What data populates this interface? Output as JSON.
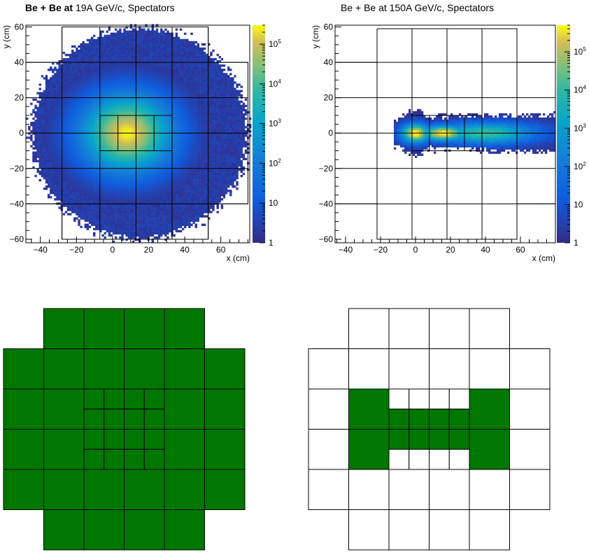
{
  "chart_data": [
    {
      "type": "heatmap",
      "title": {
        "bold": "Be + Be at",
        "rest": " 19A GeV/c, Spectators"
      },
      "xlabel": "x (cm)",
      "ylabel": "y (cm)",
      "xlim": [
        -48,
        76
      ],
      "ylim": [
        -62,
        61
      ],
      "xticks": [
        -40,
        -20,
        0,
        20,
        40,
        60
      ],
      "yticks": [
        -60,
        -40,
        -20,
        0,
        20,
        40,
        60
      ],
      "z_scale": "log",
      "z_range": [
        1,
        300000
      ],
      "colorbar_ticks": [
        {
          "value": 1,
          "base": "1",
          "exp": ""
        },
        {
          "value": 10,
          "base": "10",
          "exp": ""
        },
        {
          "value": 100,
          "base": "10",
          "exp": "2"
        },
        {
          "value": 1000,
          "base": "10",
          "exp": "3"
        },
        {
          "value": 10000,
          "base": "10",
          "exp": "4"
        },
        {
          "value": 100000,
          "base": "10",
          "exp": "5"
        }
      ],
      "distribution": {
        "shape": "broad-gaussian",
        "peak_x": 8,
        "peak_y": 0,
        "peak_count": 300000,
        "extent_x": [
          -45,
          75
        ],
        "extent_y": [
          -62,
          60
        ]
      }
    },
    {
      "type": "heatmap",
      "title": {
        "bold": "",
        "rest": "Be + Be at 150A GeV/c, Spectators"
      },
      "xlabel": "x (cm)",
      "ylabel": "y (cm)",
      "xlim": [
        -46,
        80
      ],
      "ylim": [
        -62,
        61
      ],
      "xticks": [
        -40,
        -20,
        0,
        20,
        40,
        60
      ],
      "yticks": [
        -60,
        -40,
        -20,
        0,
        20,
        40,
        60
      ],
      "z_scale": "log",
      "z_range": [
        1,
        500000
      ],
      "colorbar_ticks": [
        {
          "value": 1,
          "base": "1",
          "exp": ""
        },
        {
          "value": 10,
          "base": "10",
          "exp": ""
        },
        {
          "value": 100,
          "base": "10",
          "exp": "2"
        },
        {
          "value": 1000,
          "base": "10",
          "exp": "3"
        },
        {
          "value": 10000,
          "base": "10",
          "exp": "4"
        },
        {
          "value": 100000,
          "base": "10",
          "exp": "5"
        }
      ],
      "distribution": {
        "shape": "horizontal-band",
        "peak_x": [
          0,
          15
        ],
        "peak_y": 0,
        "peak_count": 500000,
        "extent_x": [
          -12,
          80
        ],
        "extent_y": [
          -15,
          15
        ]
      }
    }
  ],
  "module_grid": {
    "left_fired": "all",
    "right_fired_small": [
      [
        0,
        1
      ],
      [
        1,
        1
      ],
      [
        2,
        1
      ],
      [
        3,
        1
      ]
    ],
    "right_fired_large": [
      [
        1,
        2
      ],
      [
        1,
        3
      ],
      [
        4,
        2
      ],
      [
        4,
        3
      ]
    ],
    "fired_color": "#007700"
  },
  "colors": {
    "module_edge": "#000000",
    "fired": "#007700",
    "empty": "#ffffff"
  }
}
